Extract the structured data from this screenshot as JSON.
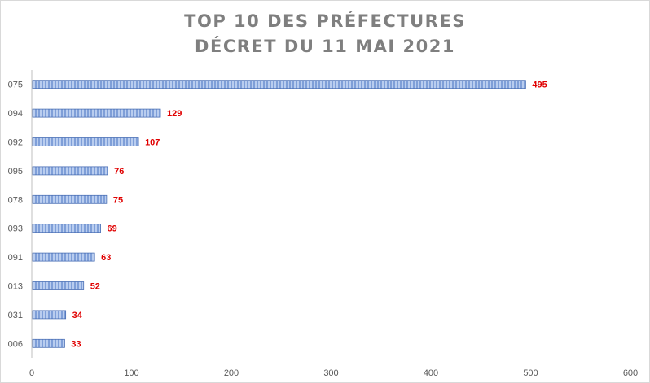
{
  "chart_data": {
    "type": "bar",
    "orientation": "horizontal",
    "title_lines": [
      "TOP 10 DES PRÉFECTURES",
      "DÉCRET DU 11 MAI 2021"
    ],
    "categories": [
      "075",
      "094",
      "092",
      "095",
      "078",
      "093",
      "091",
      "013",
      "031",
      "006"
    ],
    "values": [
      495,
      129,
      107,
      76,
      75,
      69,
      63,
      52,
      34,
      33
    ],
    "xlabel": "",
    "ylabel": "",
    "xlim": [
      0,
      600
    ],
    "x_ticks": [
      0,
      100,
      200,
      300,
      400,
      500,
      600
    ],
    "grid": false,
    "legend": "none",
    "colors": {
      "bar_fill": "#7f9fd8",
      "bar_stripe": "#b9cdef",
      "bar_stroke": "#4a6fb5",
      "data_label": "#e00000",
      "axis": "#bfbfbf"
    }
  }
}
